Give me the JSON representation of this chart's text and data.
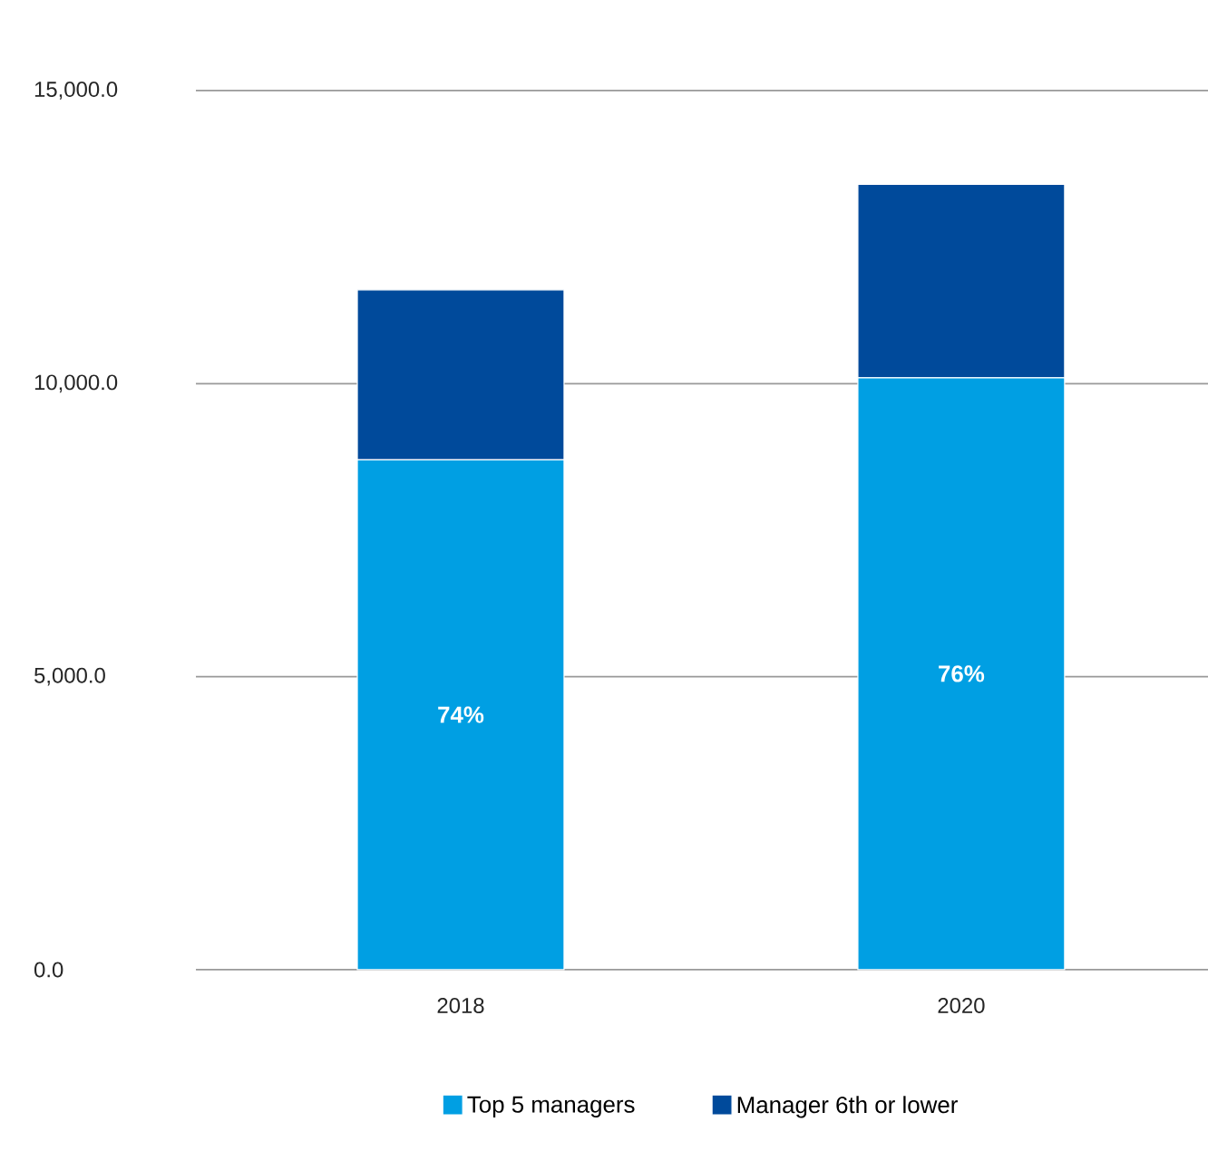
{
  "chart_data": {
    "type": "bar",
    "stacked": true,
    "categories": [
      "2018",
      "2020"
    ],
    "series": [
      {
        "name": "Top 5 managers",
        "color": "#009fe3",
        "values": [
          8700,
          10100
        ]
      },
      {
        "name": "Manager 6th or lower",
        "color": "#004a9b",
        "values": [
          2900,
          3300
        ]
      }
    ],
    "ylim": [
      0,
      15000
    ],
    "yticks": [
      {
        "value": 0,
        "label": "0.0"
      },
      {
        "value": 5000,
        "label": "5,000.0"
      },
      {
        "value": 10000,
        "label": "10,000.0"
      },
      {
        "value": 15000,
        "label": "15,000.0"
      }
    ],
    "annotations": [
      "74%",
      "76%"
    ],
    "grid": "y",
    "legend": "bottom"
  }
}
